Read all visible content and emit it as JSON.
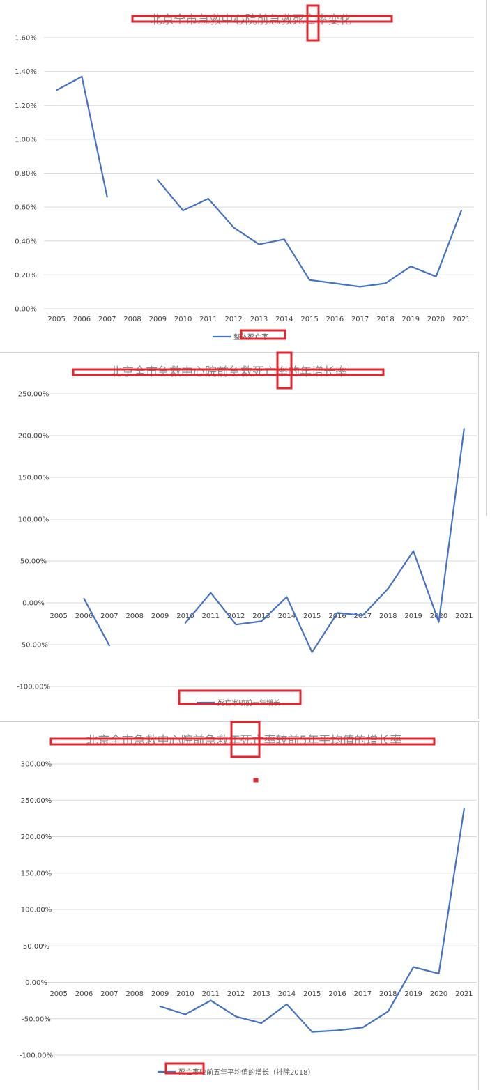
{
  "colors": {
    "series": "#4472c4",
    "grid": "#d9d9d9",
    "annotation_red": "#e3262d",
    "title_gray": "#8c8c8c"
  },
  "chart_data": [
    {
      "type": "line",
      "title": "北京全市急救中心院前急救死亡率变化",
      "categories": [
        "2005",
        "2006",
        "2007",
        "2008",
        "2009",
        "2010",
        "2011",
        "2012",
        "2013",
        "2014",
        "2015",
        "2016",
        "2017",
        "2018",
        "2019",
        "2020",
        "2021"
      ],
      "series": [
        {
          "name": "整体死亡率",
          "values": [
            1.29,
            1.37,
            0.66,
            null,
            0.76,
            0.58,
            0.65,
            0.48,
            0.38,
            0.41,
            0.17,
            0.15,
            0.13,
            0.15,
            0.25,
            0.19,
            0.58
          ]
        }
      ],
      "yunit": "%",
      "ylim": [
        0,
        1.6
      ],
      "yticks": [
        "0.00%",
        "0.20%",
        "0.40%",
        "0.60%",
        "0.80%",
        "1.00%",
        "1.20%",
        "1.40%",
        "1.60%"
      ],
      "grid": true,
      "legend_position": "bottom"
    },
    {
      "type": "line",
      "title": "北京全市急救中心院前急救死亡率的年增长率",
      "categories": [
        "2005",
        "2006",
        "2007",
        "2008",
        "2009",
        "2010",
        "2011",
        "2012",
        "2013",
        "2014",
        "2015",
        "2016",
        "2017",
        "2018",
        "2019",
        "2020",
        "2021"
      ],
      "series": [
        {
          "name": "死亡率较前一年增长",
          "values": [
            null,
            5,
            -51,
            null,
            null,
            -24,
            12,
            -26,
            -22,
            7,
            -59,
            -12,
            -15,
            17,
            62,
            -23,
            208
          ]
        }
      ],
      "yunit": "%",
      "ylim": [
        -100,
        250
      ],
      "yticks": [
        "-100.00%",
        "-50.00%",
        "0.00%",
        "50.00%",
        "100.00%",
        "150.00%",
        "200.00%",
        "250.00%"
      ],
      "grid": true,
      "legend_position": "bottom"
    },
    {
      "type": "line",
      "title": "北京全市急救中心院前急救年死亡率较前5年平均值的增长率",
      "categories": [
        "2005",
        "2006",
        "2007",
        "2008",
        "2009",
        "2010",
        "2011",
        "2012",
        "2013",
        "2014",
        "2015",
        "2016",
        "2017",
        "2018",
        "2019",
        "2020",
        "2021"
      ],
      "series": [
        {
          "name": "死亡率较前五年平均值的增长（排除2018）",
          "values": [
            null,
            null,
            null,
            null,
            -33,
            -44,
            -25,
            -47,
            -56,
            -30,
            -68,
            -66,
            -62,
            -40,
            21,
            12,
            238
          ]
        }
      ],
      "yunit": "%",
      "ylim": [
        -100,
        300
      ],
      "yticks": [
        "-100.00%",
        "-50.00%",
        "0.00%",
        "50.00%",
        "100.00%",
        "150.00%",
        "200.00%",
        "250.00%",
        "300.00%"
      ],
      "grid": true,
      "legend_position": "bottom"
    }
  ]
}
